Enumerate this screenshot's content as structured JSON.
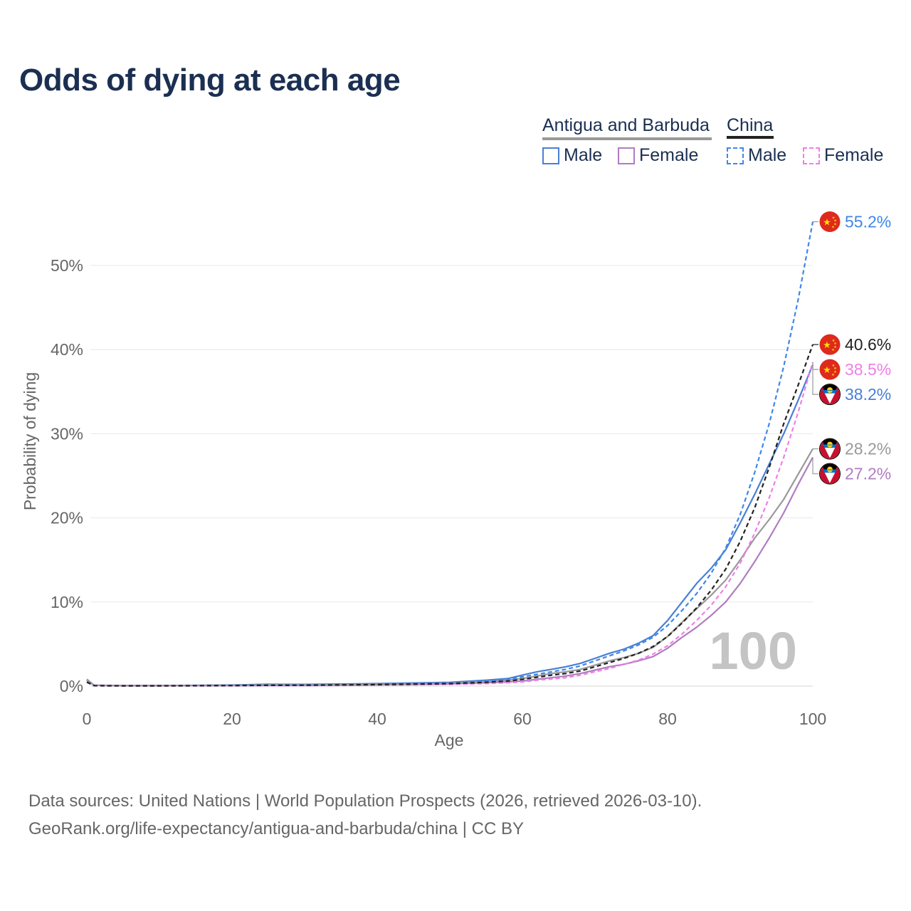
{
  "title": "Odds of dying at each age",
  "legend": {
    "groups": [
      {
        "name": "Antigua and Barbuda",
        "underline_color": "#999999"
      },
      {
        "name": "China",
        "underline_color": "#222222"
      }
    ],
    "items": [
      {
        "label": "Male",
        "color": "#4a7fd4",
        "style": "solid"
      },
      {
        "label": "Female",
        "color": "#b07cc0",
        "style": "solid"
      },
      {
        "label": "Male",
        "color": "#3f86e8",
        "style": "dashed"
      },
      {
        "label": "Female",
        "color": "#f07ee8",
        "style": "dashed"
      }
    ]
  },
  "footer": {
    "line1": "Data sources: United Nations | World Population Prospects (2026, retrieved 2026-03-10).",
    "line2": "GeoRank.org/life-expectancy/antigua-and-barbuda/china | CC BY"
  },
  "chart_data": {
    "type": "line",
    "title": "Odds of dying at each age",
    "xlabel": "Age",
    "ylabel": "Probability of dying",
    "xlim": [
      0,
      100
    ],
    "ylim": [
      0,
      55
    ],
    "x_ticks": [
      0,
      20,
      40,
      60,
      80,
      100
    ],
    "x_tick_labels": [
      "0",
      "20",
      "40",
      "60",
      "80",
      "100"
    ],
    "y_ticks": [
      0,
      10,
      20,
      30,
      40,
      50
    ],
    "y_tick_labels": [
      "0%",
      "10%",
      "20%",
      "30%",
      "40%",
      "50%"
    ],
    "grid": true,
    "age_watermark": "100",
    "x": [
      0,
      1,
      5,
      10,
      20,
      25,
      30,
      40,
      50,
      55,
      58,
      60,
      62,
      64,
      66,
      68,
      70,
      72,
      74,
      76,
      78,
      80,
      82,
      84,
      86,
      88,
      90,
      92,
      94,
      96,
      98,
      100
    ],
    "series": [
      {
        "name": "Antigua and Barbuda Male",
        "color": "#4a7fd4",
        "dash": false,
        "end_value": 38.2,
        "end_label": "38.2%",
        "flag": "antigua",
        "values": [
          0.8,
          0.1,
          0.05,
          0.06,
          0.13,
          0.22,
          0.2,
          0.3,
          0.45,
          0.7,
          0.9,
          1.3,
          1.7,
          2.0,
          2.3,
          2.7,
          3.3,
          3.9,
          4.4,
          5.1,
          6.0,
          7.8,
          10.0,
          12.2,
          14.0,
          16.2,
          19.4,
          22.8,
          26.4,
          30.0,
          34.0,
          38.2
        ]
      },
      {
        "name": "Antigua and Barbuda Female",
        "color": "#b07cc0",
        "dash": false,
        "end_value": 27.2,
        "end_label": "27.2%",
        "flag": "antigua",
        "values": [
          0.7,
          0.1,
          0.04,
          0.04,
          0.06,
          0.08,
          0.08,
          0.15,
          0.25,
          0.4,
          0.5,
          0.6,
          0.8,
          1.0,
          1.2,
          1.5,
          1.9,
          2.3,
          2.6,
          3.0,
          3.5,
          4.5,
          5.8,
          7.0,
          8.4,
          10.0,
          12.2,
          14.8,
          17.6,
          20.6,
          24.0,
          27.2
        ]
      },
      {
        "name": "Antigua and Barbuda Both",
        "color": "#999999",
        "dash": false,
        "end_value": 28.2,
        "end_label": "28.2%",
        "flag": "antigua",
        "values": [
          0.75,
          0.1,
          0.05,
          0.05,
          0.1,
          0.15,
          0.14,
          0.22,
          0.35,
          0.55,
          0.7,
          0.9,
          1.2,
          1.5,
          1.7,
          2.0,
          2.5,
          3.0,
          3.4,
          3.9,
          4.6,
          5.9,
          7.6,
          9.2,
          10.8,
          12.6,
          15.0,
          17.6,
          19.8,
          22.2,
          25.2,
          28.2
        ]
      },
      {
        "name": "China Male",
        "color": "#3f86e8",
        "dash": true,
        "end_value": 55.2,
        "end_label": "55.2%",
        "flag": "china",
        "values": [
          0.5,
          0.05,
          0.03,
          0.04,
          0.08,
          0.12,
          0.15,
          0.25,
          0.4,
          0.6,
          0.8,
          1.1,
          1.4,
          1.7,
          2.0,
          2.4,
          3.0,
          3.6,
          4.2,
          4.9,
          5.8,
          7.2,
          9.0,
          11.0,
          13.4,
          16.4,
          20.4,
          25.4,
          31.2,
          38.0,
          46.0,
          55.2
        ]
      },
      {
        "name": "China Female",
        "color": "#f07ee8",
        "dash": true,
        "end_value": 38.5,
        "end_label": "38.5%",
        "flag": "china",
        "values": [
          0.45,
          0.04,
          0.02,
          0.02,
          0.04,
          0.05,
          0.06,
          0.1,
          0.2,
          0.3,
          0.4,
          0.5,
          0.7,
          0.85,
          1.0,
          1.3,
          1.7,
          2.1,
          2.6,
          3.1,
          3.8,
          4.8,
          6.2,
          7.8,
          9.6,
          11.8,
          14.6,
          18.2,
          22.4,
          27.2,
          32.6,
          38.5
        ]
      },
      {
        "name": "China Both",
        "color": "#222222",
        "dash": true,
        "end_value": 40.6,
        "end_label": "40.6%",
        "flag": "china",
        "values": [
          0.48,
          0.05,
          0.03,
          0.03,
          0.06,
          0.09,
          0.1,
          0.18,
          0.3,
          0.45,
          0.6,
          0.8,
          1.05,
          1.3,
          1.5,
          1.8,
          2.3,
          2.8,
          3.3,
          3.9,
          4.7,
          5.9,
          7.5,
          9.3,
          11.4,
          13.9,
          17.2,
          21.2,
          26.0,
          31.2,
          35.8,
          40.6
        ]
      }
    ]
  }
}
